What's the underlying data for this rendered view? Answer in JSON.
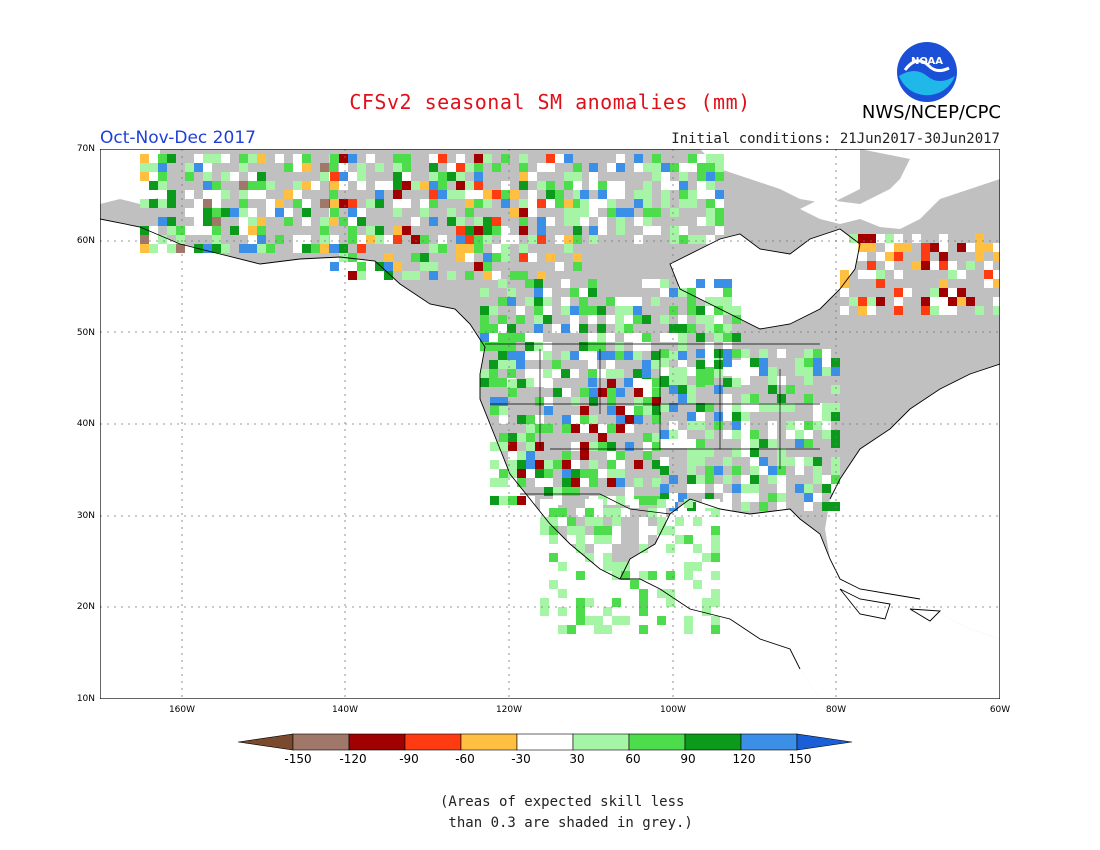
{
  "header": {
    "title": "CFSv2 seasonal SM anomalies (mm)",
    "agency": "NWS/NCEP/CPC",
    "season": "Oct-Nov-Dec 2017",
    "initial_conditions": "Initial conditions: 21Jun2017-30Jun2017",
    "logo_text": "NOAA"
  },
  "map": {
    "lat_labels": [
      "70N",
      "60N",
      "50N",
      "40N",
      "30N",
      "20N",
      "10N"
    ],
    "lon_labels": [
      "160W",
      "140W",
      "120W",
      "100W",
      "80W",
      "60W"
    ],
    "colors": {
      "land_unskilled": "#c0c0c0",
      "ocean": "#ffffff",
      "coast": "#000000"
    },
    "features": [
      {
        "name": "alaska-orange",
        "category": "-60 to -30"
      },
      {
        "name": "canada-red",
        "category": "-90 to -60"
      },
      {
        "name": "quebec-red",
        "category": "-120 to -90"
      },
      {
        "name": "great-plains-green",
        "category": "60 to 90"
      },
      {
        "name": "rockies-green",
        "category": "30 to 60"
      }
    ]
  },
  "colorbar": {
    "labels": [
      "-150",
      "-120",
      "-90",
      "-60",
      "-30",
      "30",
      "60",
      "90",
      "120",
      "150"
    ],
    "colors": [
      "#7a4a2e",
      "#a0786a",
      "#a10000",
      "#ff3b12",
      "#ffbf40",
      "#ffffff",
      "#a6f5a6",
      "#4cdc4c",
      "#0c9a1c",
      "#3b8fe6",
      "#1a5fd8"
    ]
  },
  "note": {
    "line1": "(Areas of expected skill less",
    "line2": " than 0.3 are shaded in grey.)"
  }
}
